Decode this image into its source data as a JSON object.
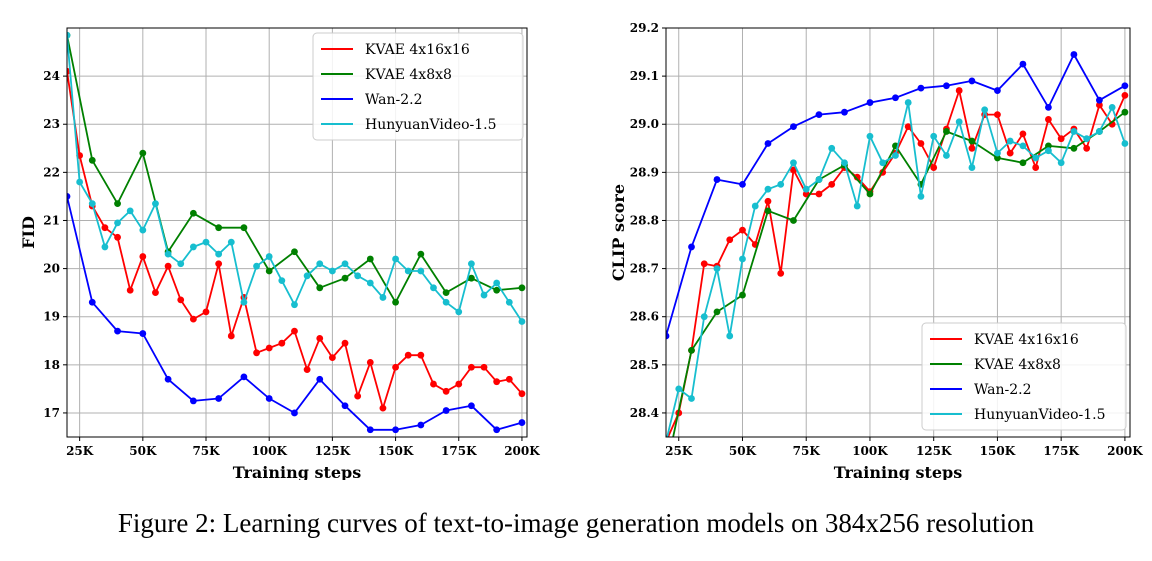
{
  "caption": "Figure 2: Learning curves of text-to-image generation models on 384x256 resolution",
  "chart_data": [
    {
      "type": "line",
      "xlabel": "Training steps",
      "ylabel": "FID",
      "xlim": [
        20000,
        202000
      ],
      "ylim": [
        16.5,
        25.0
      ],
      "x_ticks": [
        25000,
        50000,
        75000,
        100000,
        125000,
        150000,
        175000,
        200000
      ],
      "x_tick_labels": [
        "25K",
        "50K",
        "75K",
        "100K",
        "125K",
        "150K",
        "175K",
        "200K"
      ],
      "y_ticks": [
        17,
        18,
        19,
        20,
        21,
        22,
        23,
        24
      ],
      "y_tick_labels": [
        "17",
        "18",
        "19",
        "20",
        "21",
        "22",
        "23",
        "24"
      ],
      "grid": true,
      "legend_position": "top-right",
      "series": [
        {
          "name": "KVAE 4x16x16",
          "color": "#ff0000",
          "x": [
            20000,
            25000,
            30000,
            35000,
            40000,
            45000,
            50000,
            55000,
            60000,
            65000,
            70000,
            75000,
            80000,
            85000,
            90000,
            95000,
            100000,
            105000,
            110000,
            115000,
            120000,
            125000,
            130000,
            135000,
            140000,
            145000,
            150000,
            155000,
            160000,
            165000,
            170000,
            175000,
            180000,
            185000,
            190000,
            195000,
            200000
          ],
          "y": [
            24.1,
            22.35,
            21.3,
            20.85,
            20.65,
            19.55,
            20.25,
            19.5,
            20.05,
            19.35,
            18.95,
            19.1,
            20.1,
            18.6,
            19.4,
            18.25,
            18.35,
            18.45,
            18.7,
            17.9,
            18.55,
            18.15,
            18.45,
            17.35,
            18.05,
            17.1,
            17.95,
            18.2,
            18.2,
            17.6,
            17.45,
            17.6,
            17.95,
            17.95,
            17.65,
            17.7,
            17.4
          ]
        },
        {
          "name": "KVAE 4x8x8",
          "color": "#008000",
          "x": [
            20000,
            30000,
            40000,
            50000,
            60000,
            70000,
            80000,
            90000,
            100000,
            110000,
            120000,
            130000,
            140000,
            150000,
            160000,
            170000,
            180000,
            190000,
            200000
          ],
          "y": [
            24.85,
            22.25,
            21.35,
            22.4,
            20.35,
            21.15,
            20.85,
            20.85,
            19.95,
            20.35,
            19.6,
            19.8,
            20.2,
            19.3,
            20.3,
            19.5,
            19.8,
            19.55,
            19.6
          ]
        },
        {
          "name": "Wan-2.2",
          "color": "#0000ff",
          "x": [
            20000,
            30000,
            40000,
            50000,
            60000,
            70000,
            80000,
            90000,
            100000,
            110000,
            120000,
            130000,
            140000,
            150000,
            160000,
            170000,
            180000,
            190000,
            200000
          ],
          "y": [
            21.5,
            19.3,
            18.7,
            18.65,
            17.7,
            17.25,
            17.3,
            17.75,
            17.3,
            17.0,
            17.7,
            17.15,
            16.65,
            16.65,
            16.75,
            17.05,
            17.15,
            16.65,
            16.8
          ]
        },
        {
          "name": "HunyuanVideo-1.5",
          "color": "#17becf",
          "x": [
            20000,
            25000,
            30000,
            35000,
            40000,
            45000,
            50000,
            55000,
            60000,
            65000,
            70000,
            75000,
            80000,
            85000,
            90000,
            95000,
            100000,
            105000,
            110000,
            115000,
            120000,
            125000,
            130000,
            135000,
            140000,
            145000,
            150000,
            155000,
            160000,
            165000,
            170000,
            175000,
            180000,
            185000,
            190000,
            195000,
            200000
          ],
          "y": [
            24.85,
            21.8,
            21.35,
            20.45,
            20.95,
            21.2,
            20.8,
            21.35,
            20.3,
            20.1,
            20.45,
            20.55,
            20.3,
            20.55,
            19.3,
            20.05,
            20.25,
            19.75,
            19.25,
            19.85,
            20.1,
            19.95,
            20.1,
            19.85,
            19.7,
            19.4,
            20.2,
            19.95,
            19.95,
            19.6,
            19.3,
            19.1,
            20.1,
            19.45,
            19.7,
            19.3,
            18.9
          ]
        }
      ]
    },
    {
      "type": "line",
      "xlabel": "Training steps",
      "ylabel": "CLIP score",
      "xlim": [
        20000,
        202000
      ],
      "ylim": [
        28.35,
        29.2
      ],
      "x_ticks": [
        25000,
        50000,
        75000,
        100000,
        125000,
        150000,
        175000,
        200000
      ],
      "x_tick_labels": [
        "25K",
        "50K",
        "75K",
        "100K",
        "125K",
        "150K",
        "175K",
        "200K"
      ],
      "y_ticks": [
        28.4,
        28.5,
        28.6,
        28.7,
        28.8,
        28.9,
        29.0,
        29.1,
        29.2
      ],
      "y_tick_labels": [
        "28.4",
        "28.5",
        "28.6",
        "28.7",
        "28.8",
        "28.9",
        "29.0",
        "29.1",
        "29.2"
      ],
      "grid": true,
      "legend_position": "bottom-right",
      "series": [
        {
          "name": "KVAE 4x16x16",
          "color": "#ff0000",
          "x": [
            20000,
            25000,
            30000,
            35000,
            40000,
            45000,
            50000,
            55000,
            60000,
            65000,
            70000,
            75000,
            80000,
            85000,
            90000,
            95000,
            100000,
            105000,
            110000,
            115000,
            120000,
            125000,
            130000,
            135000,
            140000,
            145000,
            150000,
            155000,
            160000,
            165000,
            170000,
            175000,
            180000,
            185000,
            190000,
            195000,
            200000
          ],
          "y": [
            28.34,
            28.4,
            28.53,
            28.71,
            28.705,
            28.76,
            28.78,
            28.75,
            28.84,
            28.69,
            28.905,
            28.855,
            28.855,
            28.875,
            28.91,
            28.89,
            28.86,
            28.9,
            28.94,
            28.995,
            28.96,
            28.91,
            28.99,
            29.07,
            28.95,
            29.02,
            29.02,
            28.94,
            28.98,
            28.91,
            29.01,
            28.97,
            28.99,
            28.95,
            29.04,
            29.0,
            29.06
          ]
        },
        {
          "name": "KVAE 4x8x8",
          "color": "#008000",
          "x": [
            20000,
            30000,
            40000,
            50000,
            60000,
            70000,
            80000,
            90000,
            100000,
            110000,
            120000,
            130000,
            140000,
            150000,
            160000,
            170000,
            180000,
            190000,
            200000
          ],
          "y": [
            28.28,
            28.53,
            28.61,
            28.645,
            28.82,
            28.8,
            28.885,
            28.915,
            28.855,
            28.955,
            28.875,
            28.985,
            28.965,
            28.93,
            28.92,
            28.955,
            28.95,
            28.985,
            29.025
          ]
        },
        {
          "name": "Wan-2.2",
          "color": "#0000ff",
          "x": [
            20000,
            30000,
            40000,
            50000,
            60000,
            70000,
            80000,
            90000,
            100000,
            110000,
            120000,
            130000,
            140000,
            150000,
            160000,
            170000,
            180000,
            190000,
            200000
          ],
          "y": [
            28.56,
            28.745,
            28.885,
            28.875,
            28.96,
            28.995,
            29.02,
            29.025,
            29.045,
            29.055,
            29.075,
            29.08,
            29.09,
            29.07,
            29.125,
            29.035,
            29.145,
            29.05,
            29.08
          ]
        },
        {
          "name": "HunyuanVideo-1.5",
          "color": "#17becf",
          "x": [
            20000,
            25000,
            30000,
            35000,
            40000,
            45000,
            50000,
            55000,
            60000,
            65000,
            70000,
            75000,
            80000,
            85000,
            90000,
            95000,
            100000,
            105000,
            110000,
            115000,
            120000,
            125000,
            130000,
            135000,
            140000,
            145000,
            150000,
            155000,
            160000,
            165000,
            170000,
            175000,
            180000,
            185000,
            190000,
            195000,
            200000
          ],
          "y": [
            28.34,
            28.45,
            28.43,
            28.6,
            28.7,
            28.56,
            28.72,
            28.83,
            28.865,
            28.875,
            28.92,
            28.865,
            28.885,
            28.95,
            28.92,
            28.83,
            28.975,
            28.92,
            28.935,
            29.045,
            28.85,
            28.975,
            28.935,
            29.005,
            28.91,
            29.03,
            28.94,
            28.965,
            28.955,
            28.93,
            28.945,
            28.92,
            28.985,
            28.97,
            28.985,
            29.035,
            28.96
          ]
        }
      ]
    }
  ]
}
